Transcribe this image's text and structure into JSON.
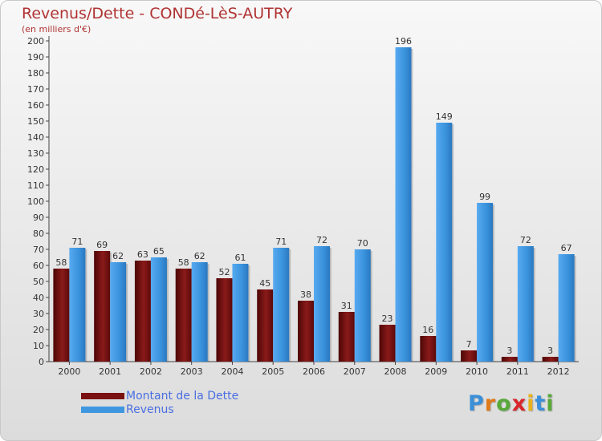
{
  "title": "Revenus/Dette - CONDé-LèS-AUTRY",
  "subtitle": "(en milliers d'€)",
  "colors": {
    "dette": "#7a1010",
    "revenus": "#3f97e0",
    "text": "#b03333"
  },
  "legend": [
    {
      "label": "Montant de la Dette",
      "color": "#7a1010"
    },
    {
      "label": "Revenus",
      "color": "#3f97e0"
    }
  ],
  "logo": {
    "text": "Proxiti"
  },
  "chart_data": {
    "type": "bar",
    "title": "Revenus/Dette - CONDé-LèS-AUTRY",
    "subtitle": "(en milliers d'€)",
    "categories": [
      "2000",
      "2001",
      "2002",
      "2003",
      "2004",
      "2005",
      "2006",
      "2007",
      "2008",
      "2009",
      "2010",
      "2011",
      "2012"
    ],
    "series": [
      {
        "name": "Montant de la Dette",
        "values": [
          58,
          69,
          63,
          58,
          52,
          45,
          38,
          31,
          23,
          16,
          7,
          3,
          3
        ]
      },
      {
        "name": "Revenus",
        "values": [
          71,
          62,
          65,
          62,
          61,
          71,
          72,
          70,
          196,
          149,
          99,
          72,
          67
        ]
      }
    ],
    "ylim": [
      0,
      200
    ],
    "ytick_step": 10,
    "grid": false
  }
}
